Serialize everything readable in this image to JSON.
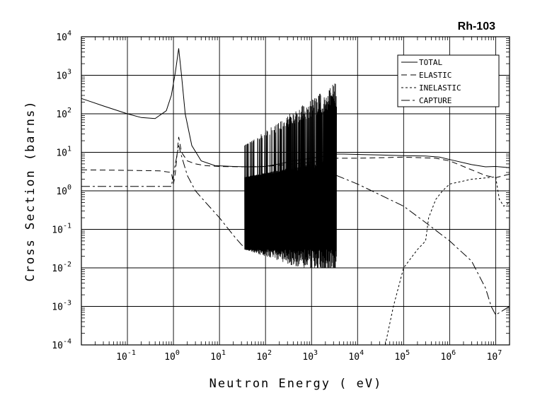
{
  "chart_data": {
    "type": "line",
    "title": "Rh-103",
    "xlabel": "Neutron Energy ( eV)",
    "ylabel": "Cross Section (barns)",
    "x_scale": "log",
    "y_scale": "log",
    "xlim": [
      0.01,
      20000000
    ],
    "ylim": [
      0.0001,
      10000
    ],
    "grid": true,
    "legend_position": "top-right",
    "x_ticks": [
      {
        "base": "10",
        "exp": "-1",
        "value": 0.1
      },
      {
        "base": "10",
        "exp": "0",
        "value": 1
      },
      {
        "base": "10",
        "exp": "1",
        "value": 10
      },
      {
        "base": "10",
        "exp": "2",
        "value": 100
      },
      {
        "base": "10",
        "exp": "3",
        "value": 1000
      },
      {
        "base": "10",
        "exp": "4",
        "value": 10000
      },
      {
        "base": "10",
        "exp": "5",
        "value": 100000
      },
      {
        "base": "10",
        "exp": "6",
        "value": 1000000
      },
      {
        "base": "10",
        "exp": "7",
        "value": 10000000
      }
    ],
    "y_ticks": [
      {
        "base": "10",
        "exp": "-4",
        "value": 0.0001
      },
      {
        "base": "10",
        "exp": "-3",
        "value": 0.001
      },
      {
        "base": "10",
        "exp": "-2",
        "value": 0.01
      },
      {
        "base": "10",
        "exp": "-1",
        "value": 0.1
      },
      {
        "base": "10",
        "exp": "0",
        "value": 1
      },
      {
        "base": "10",
        "exp": "1",
        "value": 10
      },
      {
        "base": "10",
        "exp": "2",
        "value": 100
      },
      {
        "base": "10",
        "exp": "3",
        "value": 1000
      },
      {
        "base": "10",
        "exp": "4",
        "value": 10000
      }
    ],
    "resonance_region": {
      "x_min": 35,
      "x_max": 3500,
      "y_min_floor": 0.01,
      "y_max_ceiling": 700
    },
    "series": [
      {
        "name": "TOTAL",
        "dash": "",
        "x": [
          0.01,
          0.03,
          0.1,
          0.2,
          0.4,
          0.7,
          0.9,
          1.1,
          1.3,
          1.5,
          1.8,
          2.5,
          4,
          8,
          20,
          40,
          60,
          100,
          200,
          400,
          1000,
          2000,
          3500,
          5000,
          10000,
          30000,
          100000,
          300000,
          600000,
          1000000,
          3000000,
          6000000,
          10000000,
          20000000
        ],
        "y": [
          250,
          160,
          100,
          80,
          75,
          120,
          300,
          1200,
          5000,
          1000,
          100,
          15,
          6,
          4.5,
          4.3,
          4.2,
          4.2,
          4.3,
          5,
          6,
          7,
          8,
          9,
          9,
          8.8,
          8.5,
          8.2,
          8,
          7.5,
          6.5,
          4.8,
          4.2,
          4.3,
          4
        ]
      },
      {
        "name": "ELASTIC",
        "dash": "8,5",
        "x": [
          0.01,
          0.1,
          0.5,
          0.9,
          1,
          1.1,
          1.3,
          1.5,
          2,
          3,
          5,
          10,
          30,
          100,
          1000,
          3500,
          10000,
          100000,
          500000,
          1000000,
          3000000,
          6000000,
          10000000,
          20000000
        ],
        "y": [
          3.5,
          3.4,
          3.3,
          3,
          1.5,
          3,
          25,
          10,
          6,
          5,
          4.5,
          4.3,
          4.2,
          4.3,
          5.5,
          7,
          7,
          7.5,
          7,
          6,
          3.5,
          2.5,
          2.2,
          2.7
        ]
      },
      {
        "name": "INELASTIC",
        "dash": "3,3",
        "x": [
          40000,
          60000,
          100000,
          200000,
          300000,
          350000,
          500000,
          700000,
          1000000,
          3000000,
          10000000,
          12000000,
          15000000,
          20000000
        ],
        "y": [
          0.0001,
          0.001,
          0.01,
          0.03,
          0.05,
          0.2,
          0.6,
          1,
          1.5,
          2,
          2.3,
          0.6,
          0.4,
          0.5
        ]
      },
      {
        "name": "CAPTURE",
        "dash": "12,4,3,4",
        "x": [
          0.01,
          0.1,
          0.9,
          1.1,
          1.3,
          1.5,
          2,
          3,
          5,
          10,
          20,
          30,
          40,
          3500,
          10000,
          100000,
          300000,
          1000000,
          3000000,
          6000000,
          8000000,
          10000000,
          20000000
        ],
        "y": [
          1.3,
          1.3,
          1.3,
          5,
          15,
          8,
          2.5,
          1,
          0.5,
          0.2,
          0.07,
          0.04,
          0.03,
          2.5,
          1.5,
          0.4,
          0.15,
          0.05,
          0.015,
          0.003,
          0.001,
          0.0006,
          0.001
        ]
      }
    ]
  }
}
